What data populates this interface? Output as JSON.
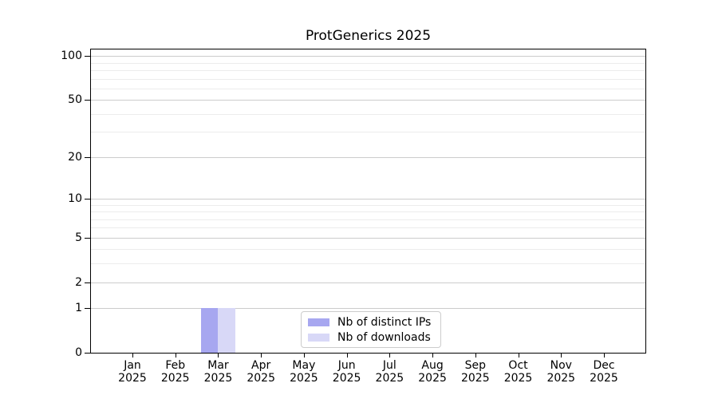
{
  "chart_data": {
    "type": "bar",
    "title": "ProtGenerics 2025",
    "categories": [
      "Jan",
      "Feb",
      "Mar",
      "Apr",
      "May",
      "Jun",
      "Jul",
      "Aug",
      "Sep",
      "Oct",
      "Nov",
      "Dec"
    ],
    "category_year": "2025",
    "series": [
      {
        "name": "Nb of distinct IPs",
        "color": "#a7a7f0",
        "values": [
          0,
          0,
          1,
          0,
          0,
          0,
          0,
          0,
          0,
          0,
          0,
          0
        ]
      },
      {
        "name": "Nb of downloads",
        "color": "#d8d8f7",
        "values": [
          0,
          0,
          1,
          0,
          0,
          0,
          0,
          0,
          0,
          0,
          0,
          0
        ]
      }
    ],
    "xlabel": "",
    "ylabel": "",
    "yscale": "log1p",
    "ylim": [
      0,
      111
    ],
    "yticks": [
      0,
      1,
      2,
      5,
      10,
      20,
      50,
      100
    ],
    "yticks_minor": [
      3,
      4,
      6,
      7,
      8,
      9,
      30,
      40,
      60,
      70,
      80,
      90
    ],
    "grid": true,
    "legend_position": "inside-bottom-center",
    "colors": {
      "grid_major": "#cccccc",
      "grid_minor": "#ececec",
      "spine": "#000000",
      "text": "#000000",
      "background": "#ffffff"
    }
  }
}
